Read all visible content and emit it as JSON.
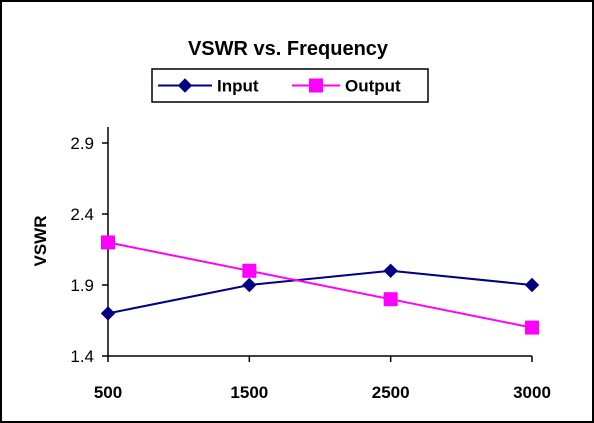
{
  "chart_data": {
    "type": "line",
    "title": "VSWR vs. Frequency",
    "xlabel": "",
    "ylabel": "VSWR",
    "categories": [
      "500",
      "1500",
      "2500",
      "3000"
    ],
    "yticks": [
      "1.4",
      "1.9",
      "2.4",
      "2.9"
    ],
    "ylim": [
      1.4,
      3.1
    ],
    "grid": false,
    "legend_position": "top-center",
    "series": [
      {
        "name": "Input",
        "values": [
          1.7,
          1.9,
          2.0,
          1.9
        ],
        "color": "#000080",
        "marker": "diamond"
      },
      {
        "name": "Output",
        "values": [
          2.2,
          2.0,
          1.8,
          1.6
        ],
        "color": "#FF00FF",
        "marker": "square"
      }
    ]
  }
}
